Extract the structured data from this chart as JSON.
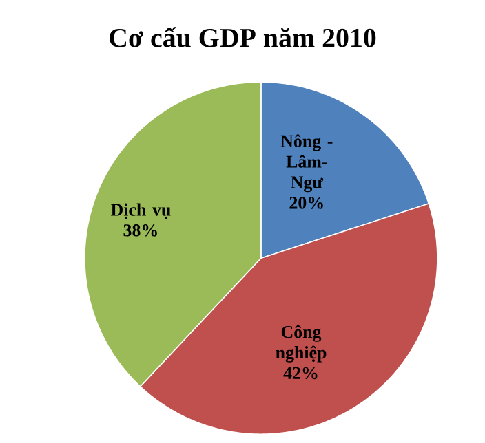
{
  "chart_data": {
    "type": "pie",
    "title": "Cơ cấu GDP năm 2010",
    "categories": [
      "Nông - Lâm- Ngư",
      "Công nghiệp",
      "Dịch vụ"
    ],
    "values": [
      20,
      42,
      38
    ],
    "colors": [
      "#4f81bd",
      "#c0504d",
      "#9bbb59"
    ],
    "value_labels": [
      "20%",
      "42%",
      "38%"
    ]
  }
}
